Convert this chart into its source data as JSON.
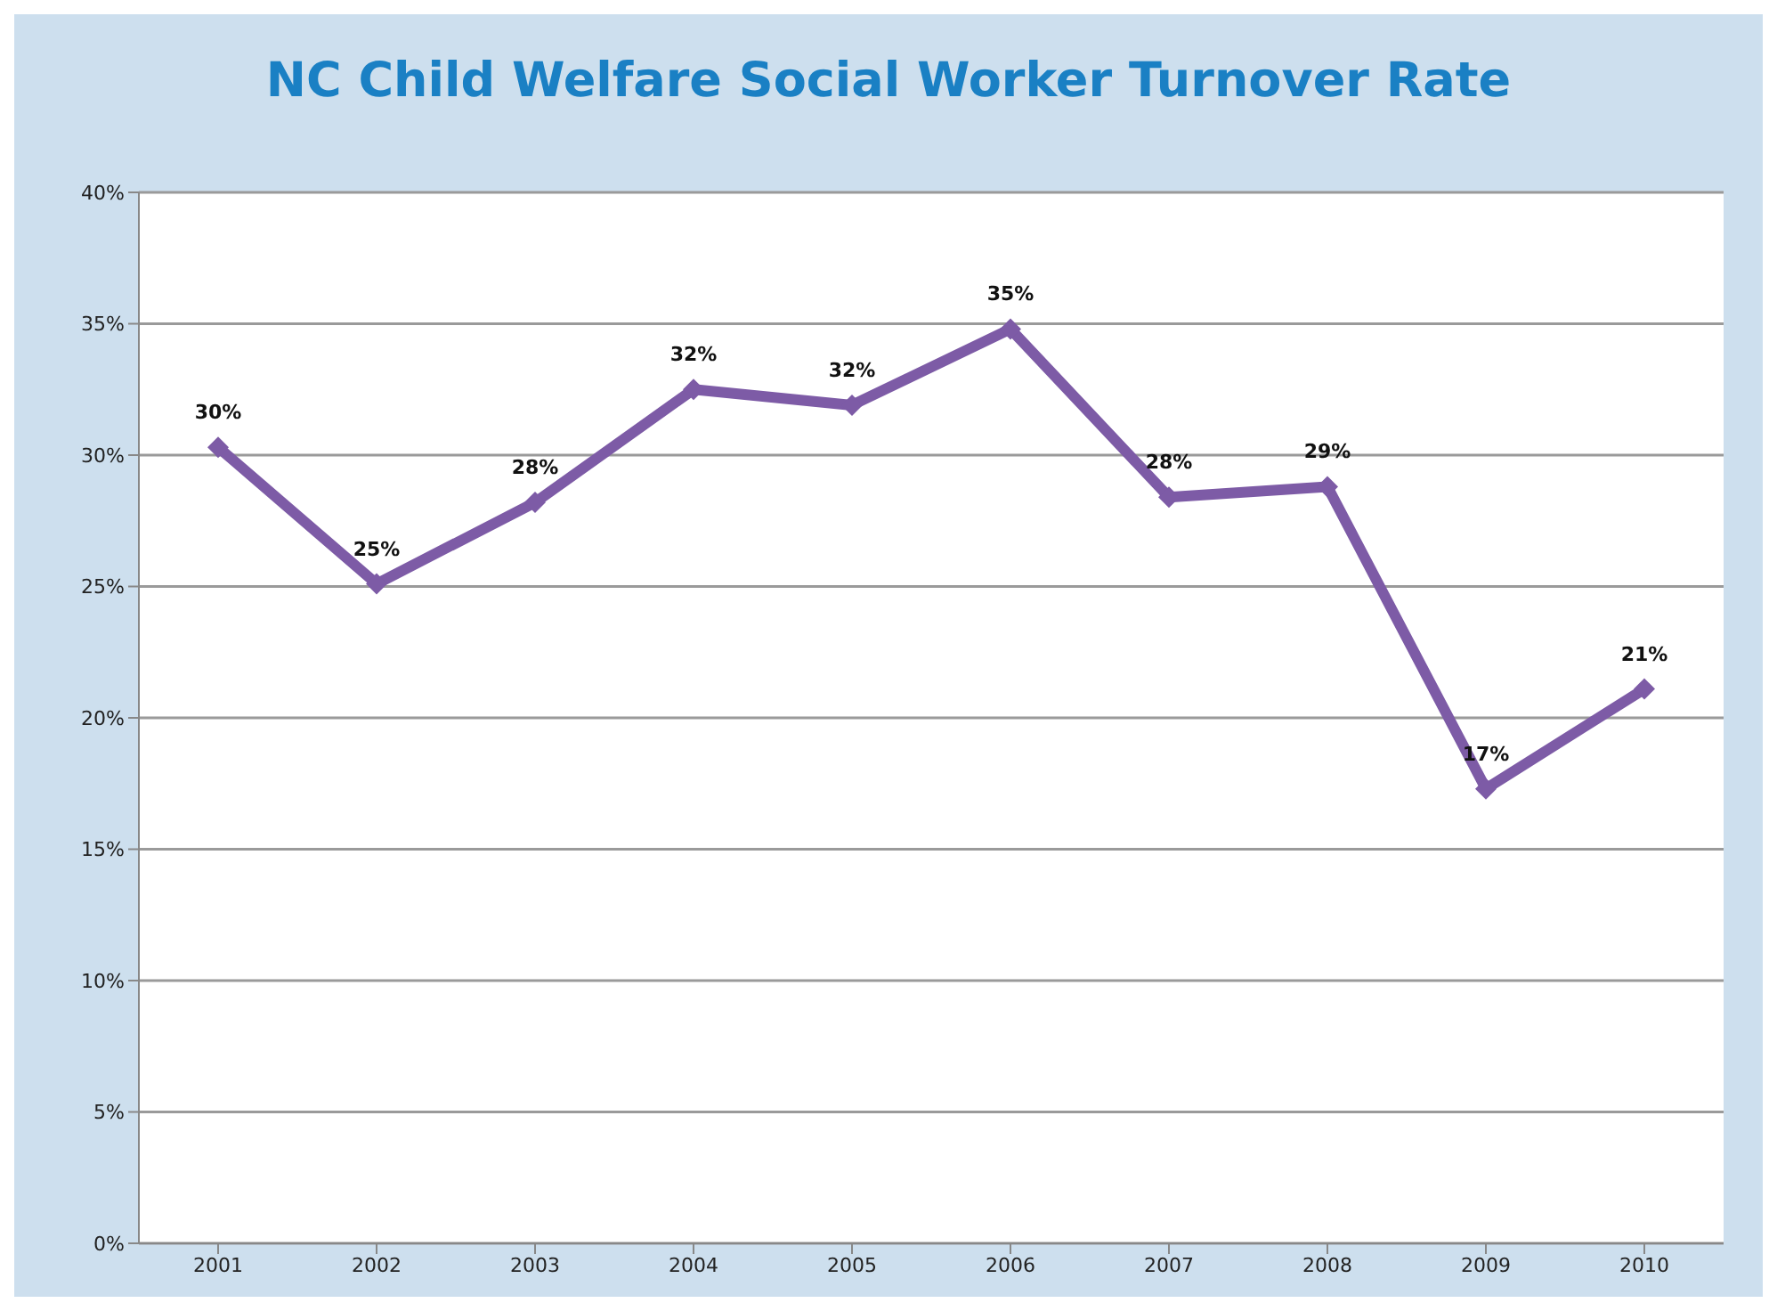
{
  "chart_data": {
    "type": "line",
    "title": "NC Child Welfare Social Worker Turnover Rate",
    "categories": [
      "2001",
      "2002",
      "2003",
      "2004",
      "2005",
      "2006",
      "2007",
      "2008",
      "2009",
      "2010"
    ],
    "series": [
      {
        "color": "#7d5ba6",
        "values": [
          30.3,
          25.1,
          28.2,
          32.5,
          31.9,
          34.8,
          28.4,
          28.8,
          17.3,
          21.1
        ],
        "value_labels": [
          "30%",
          "25%",
          "28%",
          "32%",
          "32%",
          "35%",
          "28%",
          "29%",
          "17%",
          "21%"
        ]
      }
    ],
    "ylim": [
      0,
      40
    ],
    "yticks": [
      {
        "value": 0,
        "label": "0%"
      },
      {
        "value": 5,
        "label": "5%"
      },
      {
        "value": 10,
        "label": "10%"
      },
      {
        "value": 15,
        "label": "15%"
      },
      {
        "value": 20,
        "label": "20%"
      },
      {
        "value": 25,
        "label": "25%"
      },
      {
        "value": 30,
        "label": "30%"
      },
      {
        "value": 35,
        "label": "35%"
      },
      {
        "value": 40,
        "label": "40%"
      }
    ],
    "grid": "y",
    "legend": false,
    "marker": "diamond",
    "line_style": "solid"
  }
}
